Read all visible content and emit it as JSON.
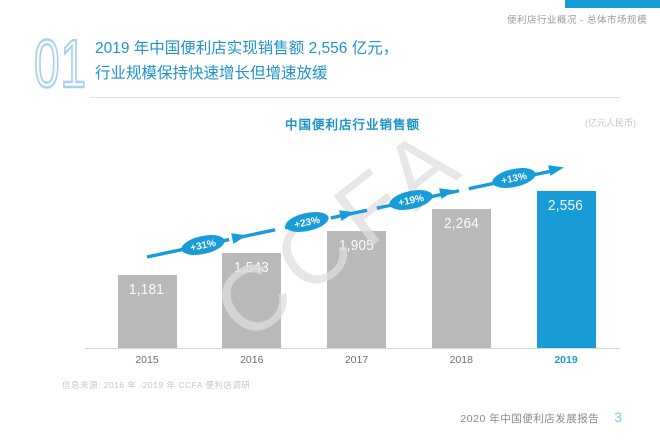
{
  "page_header": {
    "section_label": "便利店行业概况 - 总体市场规模"
  },
  "slide": {
    "number": "01",
    "title_line1": "2019 年中国便利店实现销售额 2,556 亿元，",
    "title_line2": "行业规模保持快速增长但增速放缓"
  },
  "chart_data": {
    "type": "bar",
    "title": "中国便利店行业销售额",
    "unit_label": "(亿元人民币)",
    "categories": [
      "2015",
      "2016",
      "2017",
      "2018",
      "2019"
    ],
    "values": [
      1181,
      1543,
      1905,
      2264,
      2556
    ],
    "value_labels": [
      "1,181",
      "1,543",
      "1,905",
      "2,264",
      "2,556"
    ],
    "growth_labels": [
      "+31%",
      "+23%",
      "+19%",
      "+13%"
    ],
    "highlight_category": "2019",
    "highlight_index": 4,
    "bar_color_default": "#b9b9b9",
    "bar_color_highlight": "#189cd8",
    "trend_line_color": "#189cd8",
    "ylim": [
      0,
      2700
    ],
    "grid": false,
    "legend": "none",
    "watermark": "CCFA"
  },
  "footer": {
    "source": "信息来源: 2016 年 -2019 年 CCFA 便利店调研",
    "report_title": "2020 年中国便利店发展报告",
    "page_number": "3"
  },
  "colors": {
    "accent_blue": "#189cd8",
    "title_blue": "#1e93cd",
    "light_blue_outline": "#a6d3ec",
    "bar_gray": "#b9b9b9",
    "page_number_blue": "#7fc5e8"
  }
}
